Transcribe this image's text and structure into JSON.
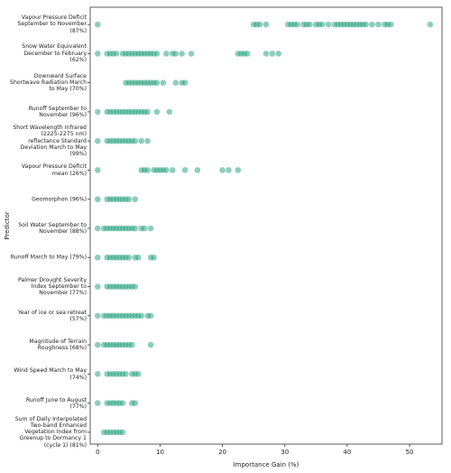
{
  "chart_data": {
    "type": "strip",
    "x_label": "Importance Gain (%)",
    "y_label": "Predictor",
    "color": "#1b9e77",
    "xlim": [
      -1.2,
      55.2
    ],
    "xticks": [
      0,
      10,
      20,
      30,
      40,
      50
    ],
    "categories": [
      "Vapour Pressure Deficit September to November (87%)",
      "Snow Water Equivalent December to February (62%)",
      "Downward Surface Shortwave Radiation March to May (70%)",
      "Runoff September to November (96%)",
      "Short Wavelength Infrared (2225-2275 nm) reflectance Standard Deviation March to May (99%)",
      "Vapour Pressure Deficit mean (26%)",
      "Geomorphon (96%)",
      "Soil Water September to November (88%)",
      "Runoff March to May (79%)",
      "Palmer Drought Severity Index September to November (77%)",
      "Year of ice or sea retreat (57%)",
      "Magnitude of Terrain Roughness (68%)",
      "Wind Speed March to May (74%)",
      "Runoff June to August (77%)",
      "Sum of Daily Interpolated Two-band Enhanced Vegetation Index from Greenup to Dormancy 1 (cycle 1) (81%)"
    ],
    "values": [
      [
        0,
        25,
        25.5,
        26,
        27,
        30.5,
        31,
        31.5,
        32,
        33,
        33.5,
        34,
        35,
        35.5,
        36,
        37,
        38,
        38.5,
        39,
        39.5,
        40,
        40.5,
        41,
        41.5,
        42,
        42.5,
        43,
        44,
        45,
        46,
        46.5,
        47,
        53.3
      ],
      [
        0,
        1.5,
        2,
        2.5,
        3,
        4,
        4.5,
        5,
        5.5,
        6,
        6.5,
        7,
        7.5,
        8,
        8.5,
        9,
        9.5,
        11,
        12,
        12.5,
        13.5,
        15,
        22.5,
        23,
        23.5,
        24,
        27,
        28,
        29
      ],
      [
        4.5,
        5,
        5.5,
        6,
        6.5,
        7,
        7.5,
        8,
        8.5,
        9,
        9.5,
        10.5,
        12.5,
        13.5,
        14
      ],
      [
        0,
        1.5,
        2,
        2.5,
        3,
        3.5,
        4,
        4.5,
        5,
        5.5,
        6,
        6.5,
        7,
        7.5,
        8,
        9.5,
        11.5
      ],
      [
        0,
        1.5,
        2,
        2.5,
        3,
        3.5,
        4,
        4.5,
        5,
        5.5,
        6,
        7,
        8
      ],
      [
        0,
        7,
        7.5,
        8,
        9,
        9.5,
        10,
        10.5,
        11,
        12,
        14,
        16,
        20,
        21,
        22.5
      ],
      [
        0,
        1.5,
        2,
        2.5,
        3,
        3.5,
        4,
        4.5,
        5,
        6
      ],
      [
        0,
        1,
        1.5,
        2,
        2.5,
        3,
        3.5,
        4,
        4.5,
        5,
        5.5,
        6,
        7,
        7.5,
        8.5
      ],
      [
        0,
        1.5,
        2,
        2.5,
        3,
        3.5,
        4,
        4.5,
        5,
        6,
        6.5,
        8.5,
        9
      ],
      [
        0,
        1.5,
        2,
        2.5,
        3,
        3.5,
        4,
        4.5,
        5,
        5.5,
        6
      ],
      [
        0,
        1,
        1.5,
        2,
        2.5,
        3,
        3.5,
        4,
        4.5,
        5,
        5.5,
        6,
        6.5,
        7,
        8,
        8.5
      ],
      [
        0,
        1,
        1.5,
        2,
        2.5,
        3,
        3.5,
        4,
        4.5,
        5,
        5.5,
        8.5
      ],
      [
        0,
        1.5,
        2,
        2.5,
        3,
        3.5,
        4,
        4.5,
        5.5,
        6,
        6.5
      ],
      [
        0,
        1.5,
        2,
        2.5,
        3,
        3.5,
        4,
        5.5,
        6
      ],
      [
        1,
        1.5,
        2,
        2.5,
        3,
        3.5,
        4
      ]
    ]
  }
}
